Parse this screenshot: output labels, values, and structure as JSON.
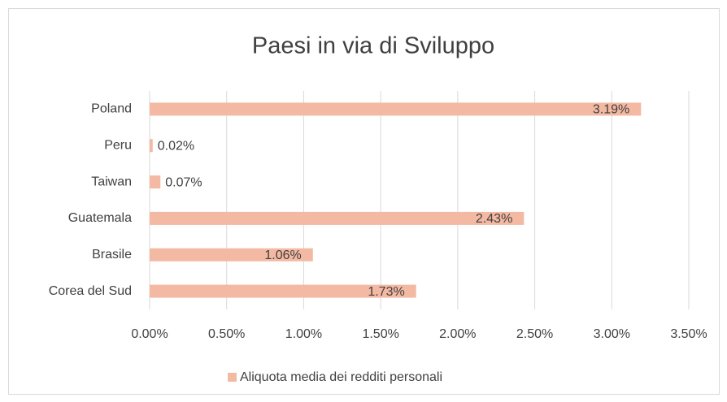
{
  "chart_data": {
    "type": "bar",
    "orientation": "horizontal",
    "title": "Paesi in via di Sviluppo",
    "categories": [
      "Poland",
      "Peru",
      "Taiwan",
      "Guatemala",
      "Brasile",
      "Corea del Sud"
    ],
    "series": [
      {
        "name": "Aliquota media dei redditi personali",
        "color": "#f4b9a2",
        "values": [
          3.19,
          0.02,
          0.07,
          2.43,
          1.06,
          1.73
        ],
        "value_labels": [
          "3.19%",
          "0.02%",
          "0.07%",
          "2.43%",
          "1.06%",
          "1.73%"
        ]
      }
    ],
    "xlim": [
      0,
      3.5
    ],
    "xticks": [
      {
        "value": 0,
        "label": "0.00%"
      },
      {
        "value": 0.5,
        "label": "0.50%"
      },
      {
        "value": 1,
        "label": "1.00%"
      },
      {
        "value": 1.5,
        "label": "1.50%"
      },
      {
        "value": 2,
        "label": "2.00%"
      },
      {
        "value": 2.5,
        "label": "2.50%"
      },
      {
        "value": 3,
        "label": "3.00%"
      },
      {
        "value": 3.5,
        "label": "3.50%"
      }
    ],
    "grid": true,
    "legend": "bottom"
  }
}
